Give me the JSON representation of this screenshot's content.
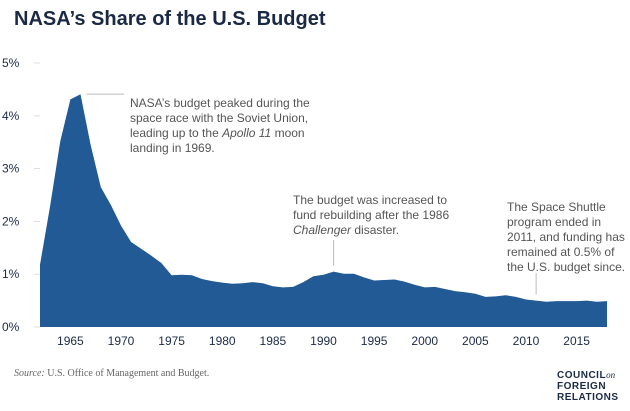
{
  "chart_data": {
    "type": "area",
    "title": "NASA’s Share of the U.S. Budget",
    "x": [
      1962,
      1963,
      1964,
      1965,
      1966,
      1967,
      1968,
      1969,
      1970,
      1971,
      1972,
      1973,
      1974,
      1975,
      1976,
      1977,
      1978,
      1979,
      1980,
      1981,
      1982,
      1983,
      1984,
      1985,
      1986,
      1987,
      1988,
      1989,
      1990,
      1991,
      1992,
      1993,
      1994,
      1995,
      1996,
      1997,
      1998,
      1999,
      2000,
      2001,
      2002,
      2003,
      2004,
      2005,
      2006,
      2007,
      2008,
      2009,
      2010,
      2011,
      2012,
      2013,
      2014,
      2015,
      2016,
      2017,
      2018
    ],
    "values": [
      1.18,
      2.29,
      3.52,
      4.31,
      4.41,
      3.45,
      2.65,
      2.31,
      1.92,
      1.61,
      1.48,
      1.35,
      1.21,
      0.98,
      0.99,
      0.98,
      0.91,
      0.87,
      0.84,
      0.82,
      0.83,
      0.85,
      0.83,
      0.77,
      0.75,
      0.76,
      0.85,
      0.96,
      0.99,
      1.05,
      1.01,
      1.01,
      0.94,
      0.88,
      0.89,
      0.9,
      0.86,
      0.8,
      0.75,
      0.76,
      0.72,
      0.68,
      0.66,
      0.63,
      0.57,
      0.58,
      0.6,
      0.57,
      0.52,
      0.5,
      0.48,
      0.49,
      0.49,
      0.49,
      0.5,
      0.48,
      0.49
    ],
    "xlim": [
      1962,
      2018
    ],
    "ylim": [
      0,
      5
    ],
    "yticks": [
      "0%",
      "1%",
      "2%",
      "3%",
      "4%",
      "5%"
    ],
    "xticks": [
      1965,
      1970,
      1975,
      1980,
      1985,
      1990,
      1995,
      2000,
      2005,
      2010,
      2015
    ],
    "color": "#215a94",
    "grid": false,
    "annotations": [
      {
        "year": 1966,
        "html_lines": [
          "NASA’s budget peaked during the",
          "space race with the Soviet Union,",
          "leading up to the <i>Apollo 11</i> moon",
          "landing in 1969."
        ]
      },
      {
        "year": 1991,
        "html_lines": [
          "The budget was increased to",
          "fund rebuilding after the 1986",
          "<i>Challenger</i> disaster."
        ]
      },
      {
        "year": 2011,
        "html_lines": [
          "The Space Shuttle",
          "program ended in",
          "2011, and funding has",
          "remained at 0.5% of",
          "the U.S. budget since."
        ]
      }
    ]
  },
  "source": {
    "label": "Source:",
    "text": "U.S. Office of Management and Budget."
  },
  "logo": {
    "line1": "COUNCIL",
    "on": "on",
    "line2": "FOREIGN",
    "line3": "RELATIONS"
  }
}
